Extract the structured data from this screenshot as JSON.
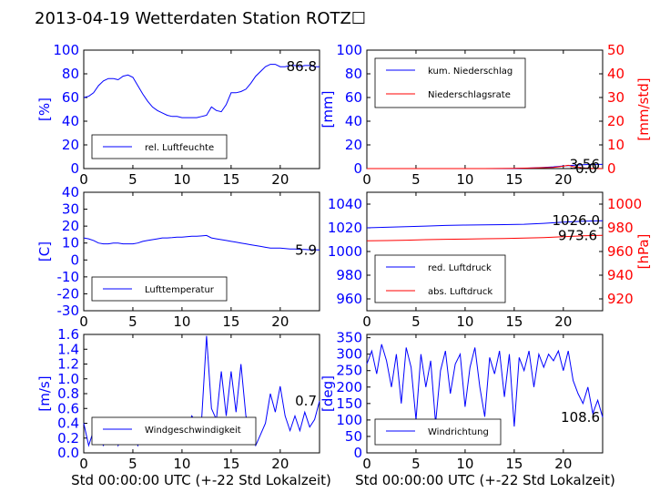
{
  "title": "2013-04-19 Wetterdaten Station ROTZ☐",
  "colors": {
    "primary": "#0000ff",
    "secondary": "#ff0000"
  },
  "xlabel": "Std 00:00:00 UTC (+-22 Std Lokalzeit)",
  "chart_data": [
    {
      "type": "line",
      "ylabel": "[%]",
      "ylim": [
        0,
        100
      ],
      "yticks": [
        0,
        20,
        40,
        60,
        80,
        100
      ],
      "xlim": [
        0,
        24
      ],
      "xticks": [
        0,
        5,
        10,
        15,
        20
      ],
      "last_value": "86.8",
      "legend": [
        "rel. Luftfeuchte"
      ],
      "series": [
        {
          "name": "rel. Luftfeuchte",
          "color": "#0000ff",
          "x": [
            0,
            0.5,
            1,
            1.5,
            2,
            2.5,
            3,
            3.5,
            4,
            4.5,
            5,
            5.5,
            6,
            6.5,
            7,
            7.5,
            8,
            8.5,
            9,
            9.5,
            10,
            10.5,
            11,
            11.5,
            12,
            12.5,
            13,
            13.5,
            14,
            14.5,
            15,
            15.5,
            16,
            16.5,
            17,
            17.5,
            18,
            18.5,
            19,
            19.5,
            20,
            20.5,
            21,
            21.5,
            22,
            22.5,
            23,
            23.5,
            24
          ],
          "y": [
            60,
            61,
            64,
            70,
            74,
            76,
            76,
            75,
            78,
            79,
            77,
            70,
            63,
            57,
            52,
            49,
            47,
            45,
            44,
            44,
            43,
            43,
            43,
            43,
            44,
            45,
            52,
            49,
            48,
            54,
            64,
            64,
            65,
            67,
            72,
            78,
            82,
            86,
            88,
            88,
            86,
            86,
            87,
            87,
            86,
            87,
            87,
            86,
            86
          ]
        }
      ]
    },
    {
      "type": "line",
      "ylabel": "[mm]",
      "ylabel2": "[mm/std]",
      "ylim": [
        0,
        100
      ],
      "yticks": [
        0,
        20,
        40,
        60,
        80,
        100
      ],
      "ylim2": [
        0,
        50
      ],
      "yticks2": [
        0,
        10,
        20,
        30,
        40,
        50
      ],
      "xlim": [
        0,
        24
      ],
      "xticks": [
        0,
        5,
        10,
        15,
        20
      ],
      "last_value": "3.56",
      "last_value2": "0.0",
      "legend": [
        "kum. Niederschlag",
        "Niederschlagsrate"
      ],
      "series": [
        {
          "name": "kum. Niederschlag",
          "color": "#0000ff",
          "x": [
            0,
            4,
            8,
            12,
            15,
            16,
            17,
            18,
            19,
            20,
            21,
            22,
            23,
            24
          ],
          "y": [
            0,
            0,
            0,
            0,
            0.1,
            0.3,
            0.6,
            1,
            1.5,
            2.2,
            2.8,
            3.2,
            3.5,
            3.56
          ]
        },
        {
          "name": "Niederschlagsrate",
          "color": "#ff0000",
          "axis": 2,
          "x": [
            0,
            4,
            8,
            12,
            15,
            16,
            17,
            18,
            19,
            20,
            20.5,
            21,
            22,
            23,
            24
          ],
          "y": [
            0,
            0,
            0,
            0,
            0.1,
            0.2,
            0.3,
            0.4,
            0.5,
            1.0,
            1.4,
            0.8,
            0.3,
            0.1,
            0
          ]
        }
      ]
    },
    {
      "type": "line",
      "ylabel": "[C]",
      "ylim": [
        -30,
        40
      ],
      "yticks": [
        -30,
        -20,
        -10,
        0,
        10,
        20,
        30,
        40
      ],
      "xlim": [
        0,
        24
      ],
      "xticks": [
        0,
        5,
        10,
        15,
        20
      ],
      "last_value": "5.9",
      "legend": [
        "Lufttemperatur"
      ],
      "series": [
        {
          "name": "Lufttemperatur",
          "color": "#0000ff",
          "x": [
            0,
            0.5,
            1,
            1.5,
            2,
            2.5,
            3,
            3.5,
            4,
            4.5,
            5,
            5.5,
            6,
            6.5,
            7,
            7.5,
            8,
            8.5,
            9,
            9.5,
            10,
            10.5,
            11,
            11.5,
            12,
            12.5,
            13,
            13.5,
            14,
            14.5,
            15,
            15.5,
            16,
            16.5,
            17,
            17.5,
            18,
            18.5,
            19,
            19.5,
            20,
            20.5,
            21,
            21.5,
            22,
            22.5,
            23,
            23.5,
            24
          ],
          "y": [
            13,
            12.5,
            11.5,
            10,
            9.5,
            9.5,
            10,
            10,
            9.5,
            9.5,
            9.5,
            10,
            11,
            11.5,
            12,
            12.5,
            13,
            13,
            13.2,
            13.5,
            13.5,
            13.8,
            14,
            14,
            14.2,
            14.5,
            13,
            12.5,
            12,
            11.5,
            11,
            10.5,
            10,
            9.5,
            9,
            8.5,
            8,
            7.5,
            7,
            7,
            7,
            6.8,
            6.5,
            6.5,
            6.3,
            6.2,
            6,
            6,
            5.9
          ]
        }
      ]
    },
    {
      "type": "line",
      "ylabel2": "[hPa]",
      "ylim": [
        950,
        1050
      ],
      "yticks": [
        960,
        980,
        1000,
        1020,
        1040
      ],
      "ylim2": [
        910,
        1010
      ],
      "yticks2": [
        920,
        940,
        960,
        980,
        1000
      ],
      "xlim": [
        0,
        24
      ],
      "xticks": [
        0,
        5,
        10,
        15,
        20
      ],
      "last_value": "1026.0",
      "last_value2": "973.6",
      "legend": [
        "red. Luftdruck",
        "abs. Luftdruck"
      ],
      "series": [
        {
          "name": "red. Luftdruck",
          "color": "#0000ff",
          "x": [
            0,
            2,
            4,
            6,
            8,
            10,
            12,
            14,
            16,
            18,
            20,
            22,
            24
          ],
          "y": [
            1020,
            1020.5,
            1021,
            1021.5,
            1022,
            1022.3,
            1022.5,
            1022.7,
            1023,
            1023.8,
            1024.8,
            1025.5,
            1026
          ]
        },
        {
          "name": "abs. Luftdruck",
          "color": "#ff0000",
          "axis": 2,
          "x": [
            0,
            2,
            4,
            6,
            8,
            10,
            12,
            14,
            16,
            18,
            20,
            22,
            24
          ],
          "y": [
            969,
            969.2,
            969.5,
            970,
            970.3,
            970.5,
            970.8,
            971,
            971.3,
            971.8,
            972.5,
            973.2,
            973.6
          ]
        }
      ]
    },
    {
      "type": "line",
      "ylabel": "[m/s]",
      "ylim": [
        0,
        1.6
      ],
      "yticks": [
        0.0,
        0.2,
        0.4,
        0.6,
        0.8,
        1.0,
        1.2,
        1.4,
        1.6
      ],
      "xlim": [
        0,
        24
      ],
      "xticks": [
        0,
        5,
        10,
        15,
        20
      ],
      "last_value": "0.7",
      "legend": [
        "Windgeschwindigkeit"
      ],
      "series": [
        {
          "name": "Windgeschwindigkeit",
          "color": "#0000ff",
          "x": [
            0,
            0.5,
            1,
            1.5,
            2,
            2.5,
            3,
            3.5,
            4,
            4.5,
            5,
            5.5,
            6,
            6.5,
            7,
            7.5,
            8,
            8.5,
            9,
            9.5,
            10,
            10.5,
            11,
            11.5,
            12,
            12.5,
            13,
            13.5,
            14,
            14.5,
            15,
            15.5,
            16,
            16.5,
            17,
            17.5,
            18,
            18.5,
            19,
            19.5,
            20,
            20.5,
            21,
            21.5,
            22,
            22.5,
            23,
            23.5,
            24
          ],
          "y": [
            0.4,
            0.1,
            0.3,
            0.2,
            0.1,
            0.3,
            0.4,
            0.1,
            0.3,
            0.2,
            0.35,
            0.1,
            0.3,
            0.2,
            0.4,
            0.15,
            0.3,
            0.2,
            0.35,
            0.3,
            0.4,
            0.3,
            0.5,
            0.4,
            0.45,
            1.58,
            0.6,
            0.45,
            1.1,
            0.5,
            1.1,
            0.55,
            1.2,
            0.5,
            0.3,
            0.1,
            0.25,
            0.4,
            0.8,
            0.55,
            0.9,
            0.5,
            0.3,
            0.5,
            0.3,
            0.55,
            0.35,
            0.45,
            0.7
          ]
        }
      ]
    },
    {
      "type": "line",
      "ylabel": "[deg]",
      "ylim": [
        0,
        360
      ],
      "yticks": [
        0,
        50,
        100,
        150,
        200,
        250,
        300,
        350
      ],
      "xlim": [
        0,
        24
      ],
      "xticks": [
        0,
        5,
        10,
        15,
        20
      ],
      "last_value": "108.6",
      "legend": [
        "Windrichtung"
      ],
      "series": [
        {
          "name": "Windrichtung",
          "color": "#0000ff",
          "x": [
            0,
            0.5,
            1,
            1.5,
            2,
            2.5,
            3,
            3.5,
            4,
            4.5,
            5,
            5.5,
            6,
            6.5,
            7,
            7.5,
            8,
            8.5,
            9,
            9.5,
            10,
            10.5,
            11,
            11.5,
            12,
            12.5,
            13,
            13.5,
            14,
            14.5,
            15,
            15.5,
            16,
            16.5,
            17,
            17.5,
            18,
            18.5,
            19,
            19.5,
            20,
            20.5,
            21,
            21.5,
            22,
            22.5,
            23,
            23.5,
            24
          ],
          "y": [
            270,
            310,
            240,
            330,
            280,
            200,
            300,
            150,
            320,
            260,
            100,
            300,
            200,
            280,
            90,
            250,
            310,
            180,
            270,
            300,
            140,
            260,
            320,
            200,
            110,
            290,
            240,
            310,
            170,
            300,
            80,
            290,
            250,
            310,
            200,
            300,
            260,
            300,
            280,
            310,
            250,
            310,
            220,
            180,
            150,
            200,
            120,
            160,
            108.6
          ]
        }
      ]
    }
  ]
}
